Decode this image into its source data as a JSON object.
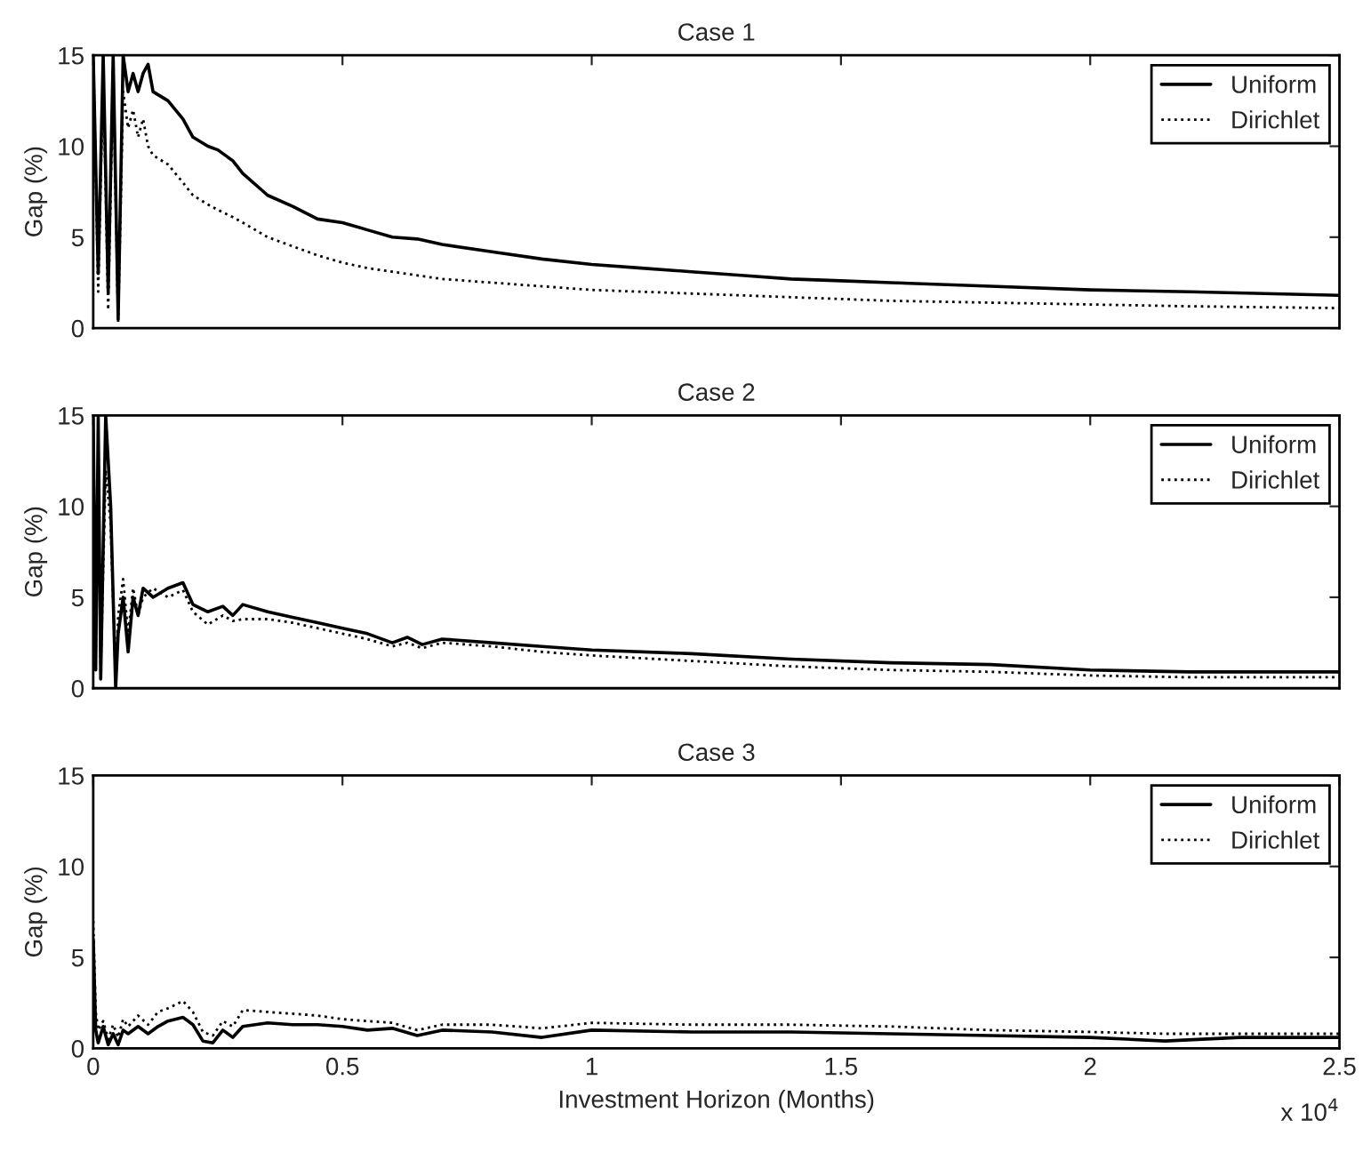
{
  "chart_data": [
    {
      "type": "line",
      "title": "Case 1",
      "ylabel": "Gap (%)",
      "xlim": [
        0,
        2.5
      ],
      "ylim": [
        0,
        15
      ],
      "yticks": [
        0,
        5,
        10,
        15
      ],
      "xticks": [
        0,
        0.5,
        1,
        1.5,
        2,
        2.5
      ],
      "tick_labels": "y",
      "legend": "top right",
      "grid": false,
      "series": [
        {
          "name": "Uniform",
          "color": "#000000",
          "line_style": "solid",
          "x": [
            0,
            0.01,
            0.02,
            0.03,
            0.04,
            0.05,
            0.06,
            0.07,
            0.08,
            0.09,
            0.1,
            0.11,
            0.12,
            0.15,
            0.18,
            0.2,
            0.23,
            0.25,
            0.28,
            0.3,
            0.35,
            0.4,
            0.45,
            0.5,
            0.55,
            0.6,
            0.65,
            0.7,
            0.8,
            0.9,
            1,
            1.1,
            1.2,
            1.3,
            1.4,
            1.5,
            1.6,
            1.8,
            2,
            2.2,
            2.5
          ],
          "values": [
            15,
            3,
            15,
            2,
            15,
            0.5,
            15,
            13,
            14,
            13,
            14,
            14.5,
            13,
            12.5,
            11.5,
            10.5,
            10,
            9.8,
            9.2,
            8.5,
            7.3,
            6.7,
            6,
            5.8,
            5.4,
            5,
            4.9,
            4.6,
            4.2,
            3.8,
            3.5,
            3.3,
            3.1,
            2.9,
            2.7,
            2.6,
            2.5,
            2.3,
            2.1,
            2,
            1.8
          ]
        },
        {
          "name": "Dirichlet",
          "color": "#000000",
          "line_style": "dotted",
          "x": [
            0,
            0.01,
            0.02,
            0.03,
            0.04,
            0.05,
            0.06,
            0.07,
            0.08,
            0.09,
            0.1,
            0.11,
            0.12,
            0.15,
            0.18,
            0.2,
            0.23,
            0.25,
            0.28,
            0.3,
            0.35,
            0.4,
            0.45,
            0.5,
            0.55,
            0.6,
            0.65,
            0.7,
            0.8,
            0.9,
            1,
            1.1,
            1.2,
            1.3,
            1.4,
            1.5,
            1.6,
            1.8,
            2,
            2.2,
            2.5
          ],
          "values": [
            15,
            2,
            14,
            1,
            14,
            0.3,
            13,
            11,
            12,
            10.5,
            11.5,
            10,
            9.5,
            9,
            8,
            7.3,
            6.8,
            6.5,
            6.1,
            5.8,
            5,
            4.5,
            4,
            3.6,
            3.3,
            3.1,
            2.9,
            2.7,
            2.5,
            2.3,
            2.1,
            2,
            1.9,
            1.8,
            1.7,
            1.6,
            1.5,
            1.4,
            1.3,
            1.2,
            1.1
          ]
        }
      ]
    },
    {
      "type": "line",
      "title": "Case 2",
      "ylabel": "Gap (%)",
      "xlim": [
        0,
        2.5
      ],
      "ylim": [
        0,
        15
      ],
      "yticks": [
        0,
        5,
        10,
        15
      ],
      "xticks": [
        0,
        0.5,
        1,
        1.5,
        2,
        2.5
      ],
      "tick_labels": "y",
      "legend": "top right",
      "grid": false,
      "series": [
        {
          "name": "Uniform",
          "color": "#000000",
          "line_style": "solid",
          "x": [
            0,
            0.005,
            0.01,
            0.015,
            0.025,
            0.035,
            0.045,
            0.05,
            0.06,
            0.07,
            0.08,
            0.09,
            0.1,
            0.12,
            0.15,
            0.18,
            0.2,
            0.23,
            0.26,
            0.28,
            0.3,
            0.35,
            0.4,
            0.45,
            0.5,
            0.55,
            0.6,
            0.63,
            0.66,
            0.7,
            0.8,
            0.9,
            1,
            1.2,
            1.4,
            1.6,
            1.8,
            2,
            2.2,
            2.5
          ],
          "values": [
            15,
            1,
            15,
            0.5,
            15,
            10,
            0,
            3,
            5,
            2,
            5,
            4,
            5.5,
            5,
            5.5,
            5.8,
            4.6,
            4.2,
            4.5,
            4.0,
            4.6,
            4.2,
            3.9,
            3.6,
            3.3,
            3.0,
            2.5,
            2.8,
            2.4,
            2.7,
            2.5,
            2.3,
            2.1,
            1.9,
            1.6,
            1.4,
            1.3,
            1.0,
            0.9,
            0.9
          ]
        },
        {
          "name": "Dirichlet",
          "color": "#000000",
          "line_style": "dotted",
          "x": [
            0,
            0.005,
            0.01,
            0.015,
            0.025,
            0.035,
            0.045,
            0.05,
            0.06,
            0.07,
            0.08,
            0.09,
            0.1,
            0.12,
            0.15,
            0.18,
            0.2,
            0.23,
            0.26,
            0.28,
            0.3,
            0.35,
            0.4,
            0.45,
            0.5,
            0.55,
            0.6,
            0.63,
            0.66,
            0.7,
            0.8,
            0.9,
            1,
            1.2,
            1.4,
            1.6,
            1.8,
            2,
            2.2,
            2.5
          ],
          "values": [
            14,
            2,
            13,
            1,
            12,
            9,
            0.5,
            4,
            6,
            3,
            5.5,
            4,
            5,
            5.5,
            5,
            5.4,
            4.2,
            3.5,
            4.0,
            3.7,
            3.8,
            3.8,
            3.6,
            3.3,
            3.0,
            2.7,
            2.3,
            2.5,
            2.2,
            2.5,
            2.3,
            2.0,
            1.8,
            1.5,
            1.2,
            1.0,
            0.9,
            0.7,
            0.6,
            0.6
          ]
        }
      ]
    },
    {
      "type": "line",
      "title": "Case 3",
      "ylabel": "Gap (%)",
      "xlabel": "Investment Horizon (Months)",
      "xlim": [
        0,
        2.5
      ],
      "ylim": [
        0,
        15
      ],
      "yticks": [
        0,
        5,
        10,
        15
      ],
      "xticks": [
        0,
        0.5,
        1,
        1.5,
        2,
        2.5
      ],
      "annotations": [
        "x 10$^{4}$"
      ],
      "legend": "top right",
      "grid": false,
      "series": [
        {
          "name": "Uniform",
          "color": "#000000",
          "line_style": "solid",
          "x": [
            0,
            0.005,
            0.01,
            0.02,
            0.03,
            0.04,
            0.05,
            0.06,
            0.07,
            0.09,
            0.11,
            0.13,
            0.15,
            0.18,
            0.2,
            0.22,
            0.24,
            0.26,
            0.28,
            0.3,
            0.35,
            0.4,
            0.45,
            0.5,
            0.55,
            0.6,
            0.65,
            0.7,
            0.8,
            0.9,
            1,
            1.2,
            1.4,
            1.6,
            1.8,
            2,
            2.15,
            2.3,
            2.5
          ],
          "values": [
            6,
            1,
            0.3,
            1.2,
            0.2,
            0.8,
            0.2,
            1.0,
            0.8,
            1.2,
            0.8,
            1.2,
            1.5,
            1.7,
            1.3,
            0.4,
            0.3,
            1.0,
            0.6,
            1.2,
            1.4,
            1.3,
            1.3,
            1.2,
            1.0,
            1.1,
            0.7,
            1.0,
            0.9,
            0.6,
            1.0,
            0.9,
            0.9,
            0.8,
            0.7,
            0.6,
            0.4,
            0.6,
            0.6
          ]
        },
        {
          "name": "Dirichlet",
          "color": "#000000",
          "line_style": "dotted",
          "x": [
            0,
            0.005,
            0.01,
            0.02,
            0.03,
            0.04,
            0.05,
            0.06,
            0.07,
            0.09,
            0.11,
            0.13,
            0.15,
            0.18,
            0.2,
            0.22,
            0.24,
            0.26,
            0.28,
            0.3,
            0.35,
            0.4,
            0.45,
            0.5,
            0.55,
            0.6,
            0.65,
            0.7,
            0.8,
            0.9,
            1,
            1.2,
            1.4,
            1.6,
            1.8,
            2,
            2.15,
            2.3,
            2.5
          ],
          "values": [
            7,
            2,
            1,
            1.5,
            0.5,
            1.3,
            0.6,
            1.6,
            1.2,
            1.8,
            1.3,
            2.0,
            2.2,
            2.6,
            2.0,
            0.9,
            0.7,
            1.5,
            1.2,
            2.1,
            2.0,
            1.9,
            1.8,
            1.6,
            1.5,
            1.4,
            1.0,
            1.3,
            1.3,
            1.1,
            1.4,
            1.3,
            1.3,
            1.2,
            1.0,
            0.9,
            0.8,
            0.8,
            0.8
          ]
        }
      ]
    }
  ]
}
